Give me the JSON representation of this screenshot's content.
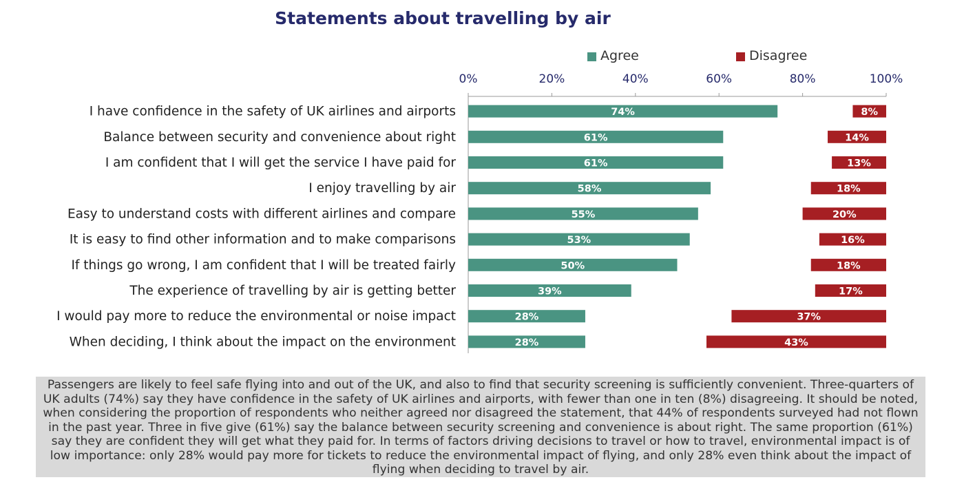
{
  "chart_data": {
    "type": "bar",
    "orientation": "horizontal",
    "stacked_alignment": "agree-left, disagree-right",
    "title": "Statements about travelling by air",
    "xlim": [
      0,
      100
    ],
    "x_ticks": [
      "0%",
      "20%",
      "40%",
      "60%",
      "80%",
      "100%"
    ],
    "legend_placement": "top",
    "categories": [
      "I have confidence in the safety of UK airlines and airports",
      "Balance between security and convenience about right",
      "I am confident that I will get the service I have paid for",
      "I enjoy travelling by air",
      "Easy to understand costs with different airlines and compare",
      "It is easy to find other information and to make comparisons",
      "If things go wrong, I am confident that I will be treated fairly",
      "The experience of travelling by air is getting better",
      "I would pay more to reduce the environmental or noise impact",
      "When deciding, I think about the impact on the environment"
    ],
    "series": [
      {
        "name": "Agree",
        "color": "#4a9482",
        "values": [
          74,
          61,
          61,
          58,
          55,
          53,
          50,
          39,
          28,
          28
        ],
        "labels": [
          "74%",
          "61%",
          "61%",
          "58%",
          "55%",
          "53%",
          "50%",
          "39%",
          "28%",
          "28%"
        ]
      },
      {
        "name": "Disagree",
        "color": "#a61f23",
        "values": [
          8,
          14,
          13,
          18,
          20,
          16,
          18,
          17,
          37,
          43
        ],
        "labels": [
          "8%",
          "14%",
          "13%",
          "18%",
          "20%",
          "16%",
          "18%",
          "17%",
          "37%",
          "43%"
        ]
      }
    ]
  },
  "note": {
    "text": "Passengers are likely to feel safe flying into and out of the UK, and also to find that security screening is sufficiently convenient. Three-quarters of UK adults (74%) say they have confidence in the safety of UK airlines and airports, with fewer than one in ten (8%) disagreeing. It should be noted, when considering the proportion of respondents who neither agreed nor disagreed the statement, that 44% of respondents surveyed had not flown in the past year. Three in five give (61%) say the balance between security screening and convenience is about right. The same proportion (61%) say they are confident they will get what they paid for. In terms of factors driving decisions to travel or how to travel, environmental impact is of low importance: only 28% would pay more for tickets to reduce the environmental impact of flying, and only 28% even think about the impact of flying when deciding to travel by air."
  }
}
